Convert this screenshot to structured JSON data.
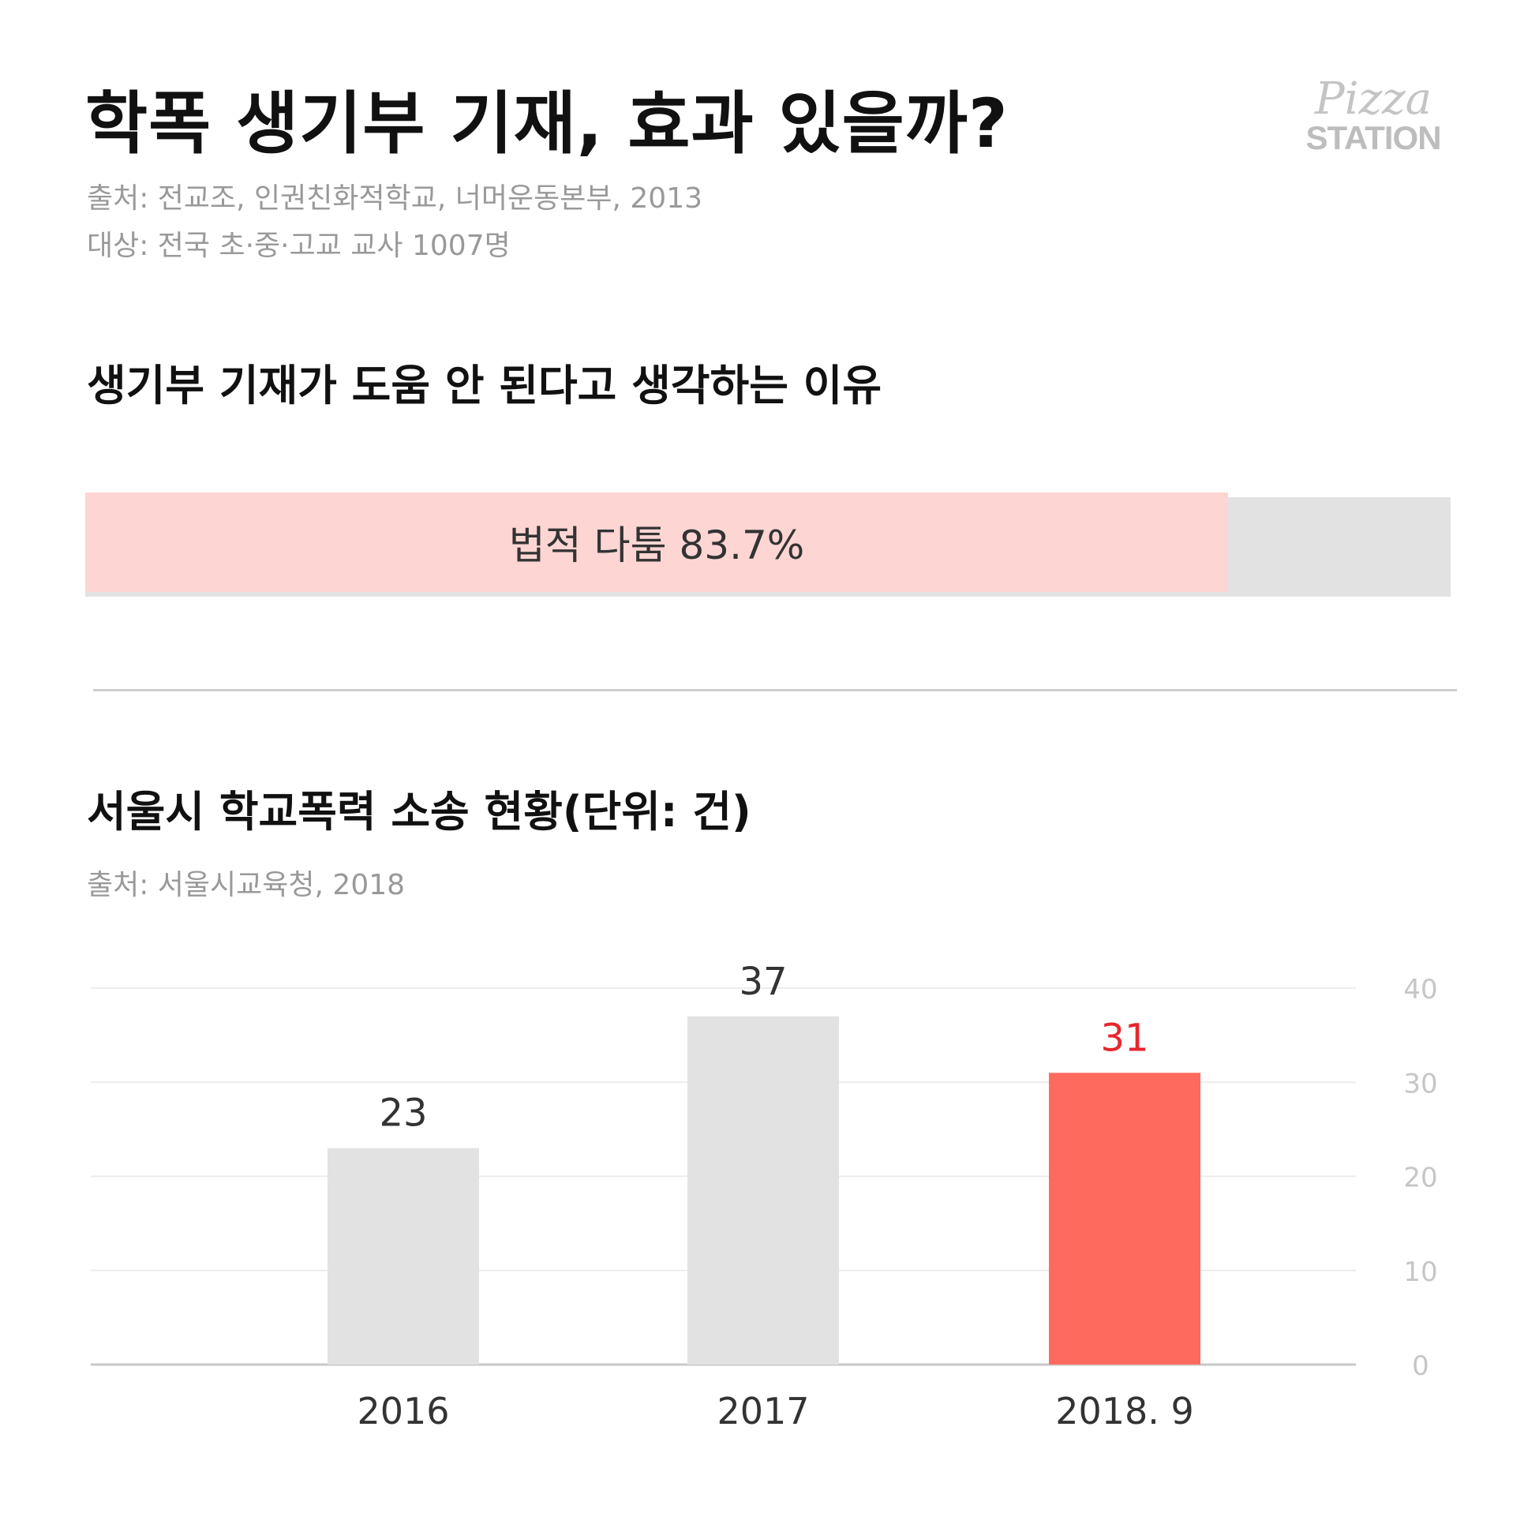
{
  "header": {
    "title": "학폭 생기부 기재, 효과 있을까?",
    "source": "출처: 전교조, 인권친화적학교, 너머운동본부, 2013",
    "target": "대상: 전국 초·중·고교 교사 1007명"
  },
  "logo": {
    "line1": "Pizza",
    "line2": "STATION"
  },
  "survey": {
    "title": "생기부 기재가 도움 안 된다고 생각하는 이유",
    "label": "법적 다툼 83.7%",
    "percent": 83.7
  },
  "lawsuits": {
    "title": "서울시 학교폭력 소송 현황(단위: 건)",
    "source": "출처: 서울시교육청, 2018"
  },
  "colors": {
    "accent": "#ff6a5f",
    "accent_text": "#e8262d",
    "bar_gray": "#e2e2e2",
    "pink": "#fdd6d3"
  },
  "chart_data": [
    {
      "type": "bar",
      "orientation": "horizontal-stacked",
      "title": "생기부 기재가 도움 안 된다고 생각하는 이유",
      "categories": [
        "법적 다툼"
      ],
      "values": [
        83.7
      ],
      "unit": "%"
    },
    {
      "type": "bar",
      "title": "서울시 학교폭력 소송 현황(단위: 건)",
      "categories": [
        "2016",
        "2017",
        "2018. 9"
      ],
      "values": [
        23,
        37,
        31
      ],
      "highlight": [
        false,
        false,
        true
      ],
      "ylim": [
        0,
        40
      ],
      "yticks": [
        0,
        10,
        20,
        30,
        40
      ],
      "axis_side": "right",
      "grid": true,
      "xlabel": "",
      "ylabel": ""
    }
  ]
}
